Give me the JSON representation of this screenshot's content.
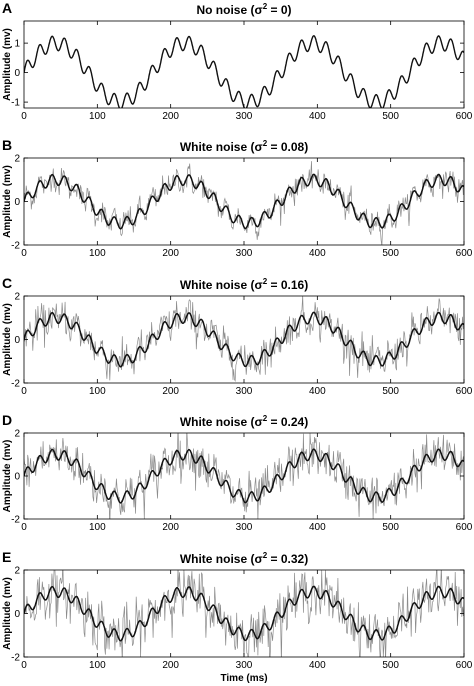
{
  "figure": {
    "xlabel": "Time (ms)"
  },
  "colors": {
    "clean_signal": "#111111",
    "noisy_signal": "#8c8c8c",
    "axes": "#000000"
  },
  "chart_data": [
    {
      "type": "line",
      "panel": "A",
      "title_prefix": "No noise (",
      "title_sigma": "σ",
      "title_sup": "2",
      "title_suffix": " = 0)",
      "ylabel": "Amplitude (mv)",
      "xlabel": "",
      "xlim": [
        0,
        600
      ],
      "ylim": [
        -1.2,
        1.75
      ],
      "xticks": [
        0,
        100,
        200,
        300,
        400,
        500,
        600
      ],
      "yticks": [
        -1,
        0,
        1
      ],
      "grid": false,
      "series": [
        {
          "role": "clean",
          "formula": "sin(2*pi*t/175) + 0.25*sin(2*pi*t/17)",
          "x_range": [
            0,
            600
          ]
        }
      ],
      "noise_variance": 0
    },
    {
      "type": "line",
      "panel": "B",
      "title_prefix": "White noise (",
      "title_sigma": "σ",
      "title_sup": "2",
      "title_suffix": " = 0.08)",
      "ylabel": "Amplitude (mv)",
      "xlabel": "",
      "xlim": [
        0,
        600
      ],
      "ylim": [
        -2,
        2
      ],
      "xticks": [
        0,
        100,
        200,
        300,
        400,
        500,
        600
      ],
      "yticks": [
        -2,
        0,
        2
      ],
      "grid": false,
      "series": [
        {
          "role": "noisy",
          "formula": "clean + white noise",
          "x_range": [
            0,
            600
          ]
        },
        {
          "role": "clean",
          "formula": "sin(2*pi*t/175) + 0.25*sin(2*pi*t/17)",
          "x_range": [
            0,
            600
          ]
        }
      ],
      "noise_variance": 0.08
    },
    {
      "type": "line",
      "panel": "C",
      "title_prefix": "White noise (",
      "title_sigma": "σ",
      "title_sup": "2",
      "title_suffix": " = 0.16)",
      "ylabel": "Amplitude (mv)",
      "xlabel": "",
      "xlim": [
        0,
        600
      ],
      "ylim": [
        -2,
        2
      ],
      "xticks": [
        0,
        100,
        200,
        300,
        400,
        500,
        600
      ],
      "yticks": [
        -2,
        0,
        2
      ],
      "grid": false,
      "series": [
        {
          "role": "noisy",
          "formula": "clean + white noise",
          "x_range": [
            0,
            600
          ]
        },
        {
          "role": "clean",
          "formula": "sin(2*pi*t/175) + 0.25*sin(2*pi*t/17)",
          "x_range": [
            0,
            600
          ]
        }
      ],
      "noise_variance": 0.16
    },
    {
      "type": "line",
      "panel": "D",
      "title_prefix": "White noise (",
      "title_sigma": "σ",
      "title_sup": "2",
      "title_suffix": " = 0.24)",
      "ylabel": "Amplitude (mv)",
      "xlabel": "",
      "xlim": [
        0,
        600
      ],
      "ylim": [
        -2,
        2
      ],
      "xticks": [
        0,
        100,
        200,
        300,
        400,
        500,
        600
      ],
      "yticks": [
        -2,
        0,
        2
      ],
      "grid": false,
      "series": [
        {
          "role": "noisy",
          "formula": "clean + white noise",
          "x_range": [
            0,
            600
          ]
        },
        {
          "role": "clean",
          "formula": "sin(2*pi*t/175) + 0.25*sin(2*pi*t/17)",
          "x_range": [
            0,
            600
          ]
        }
      ],
      "noise_variance": 0.24
    },
    {
      "type": "line",
      "panel": "E",
      "title_prefix": "White noise (",
      "title_sigma": "σ",
      "title_sup": "2",
      "title_suffix": " = 0.32)",
      "ylabel": "Amplitude (mv)",
      "xlabel": "Time (ms)",
      "xlim": [
        0,
        600
      ],
      "ylim": [
        -2,
        2
      ],
      "xticks": [
        0,
        100,
        200,
        300,
        400,
        500,
        600
      ],
      "yticks": [
        -2,
        0,
        2
      ],
      "grid": false,
      "series": [
        {
          "role": "noisy",
          "formula": "clean + white noise",
          "x_range": [
            0,
            600
          ]
        },
        {
          "role": "clean",
          "formula": "sin(2*pi*t/175) + 0.25*sin(2*pi*t/17)",
          "x_range": [
            0,
            600
          ]
        }
      ],
      "noise_variance": 0.32
    }
  ]
}
